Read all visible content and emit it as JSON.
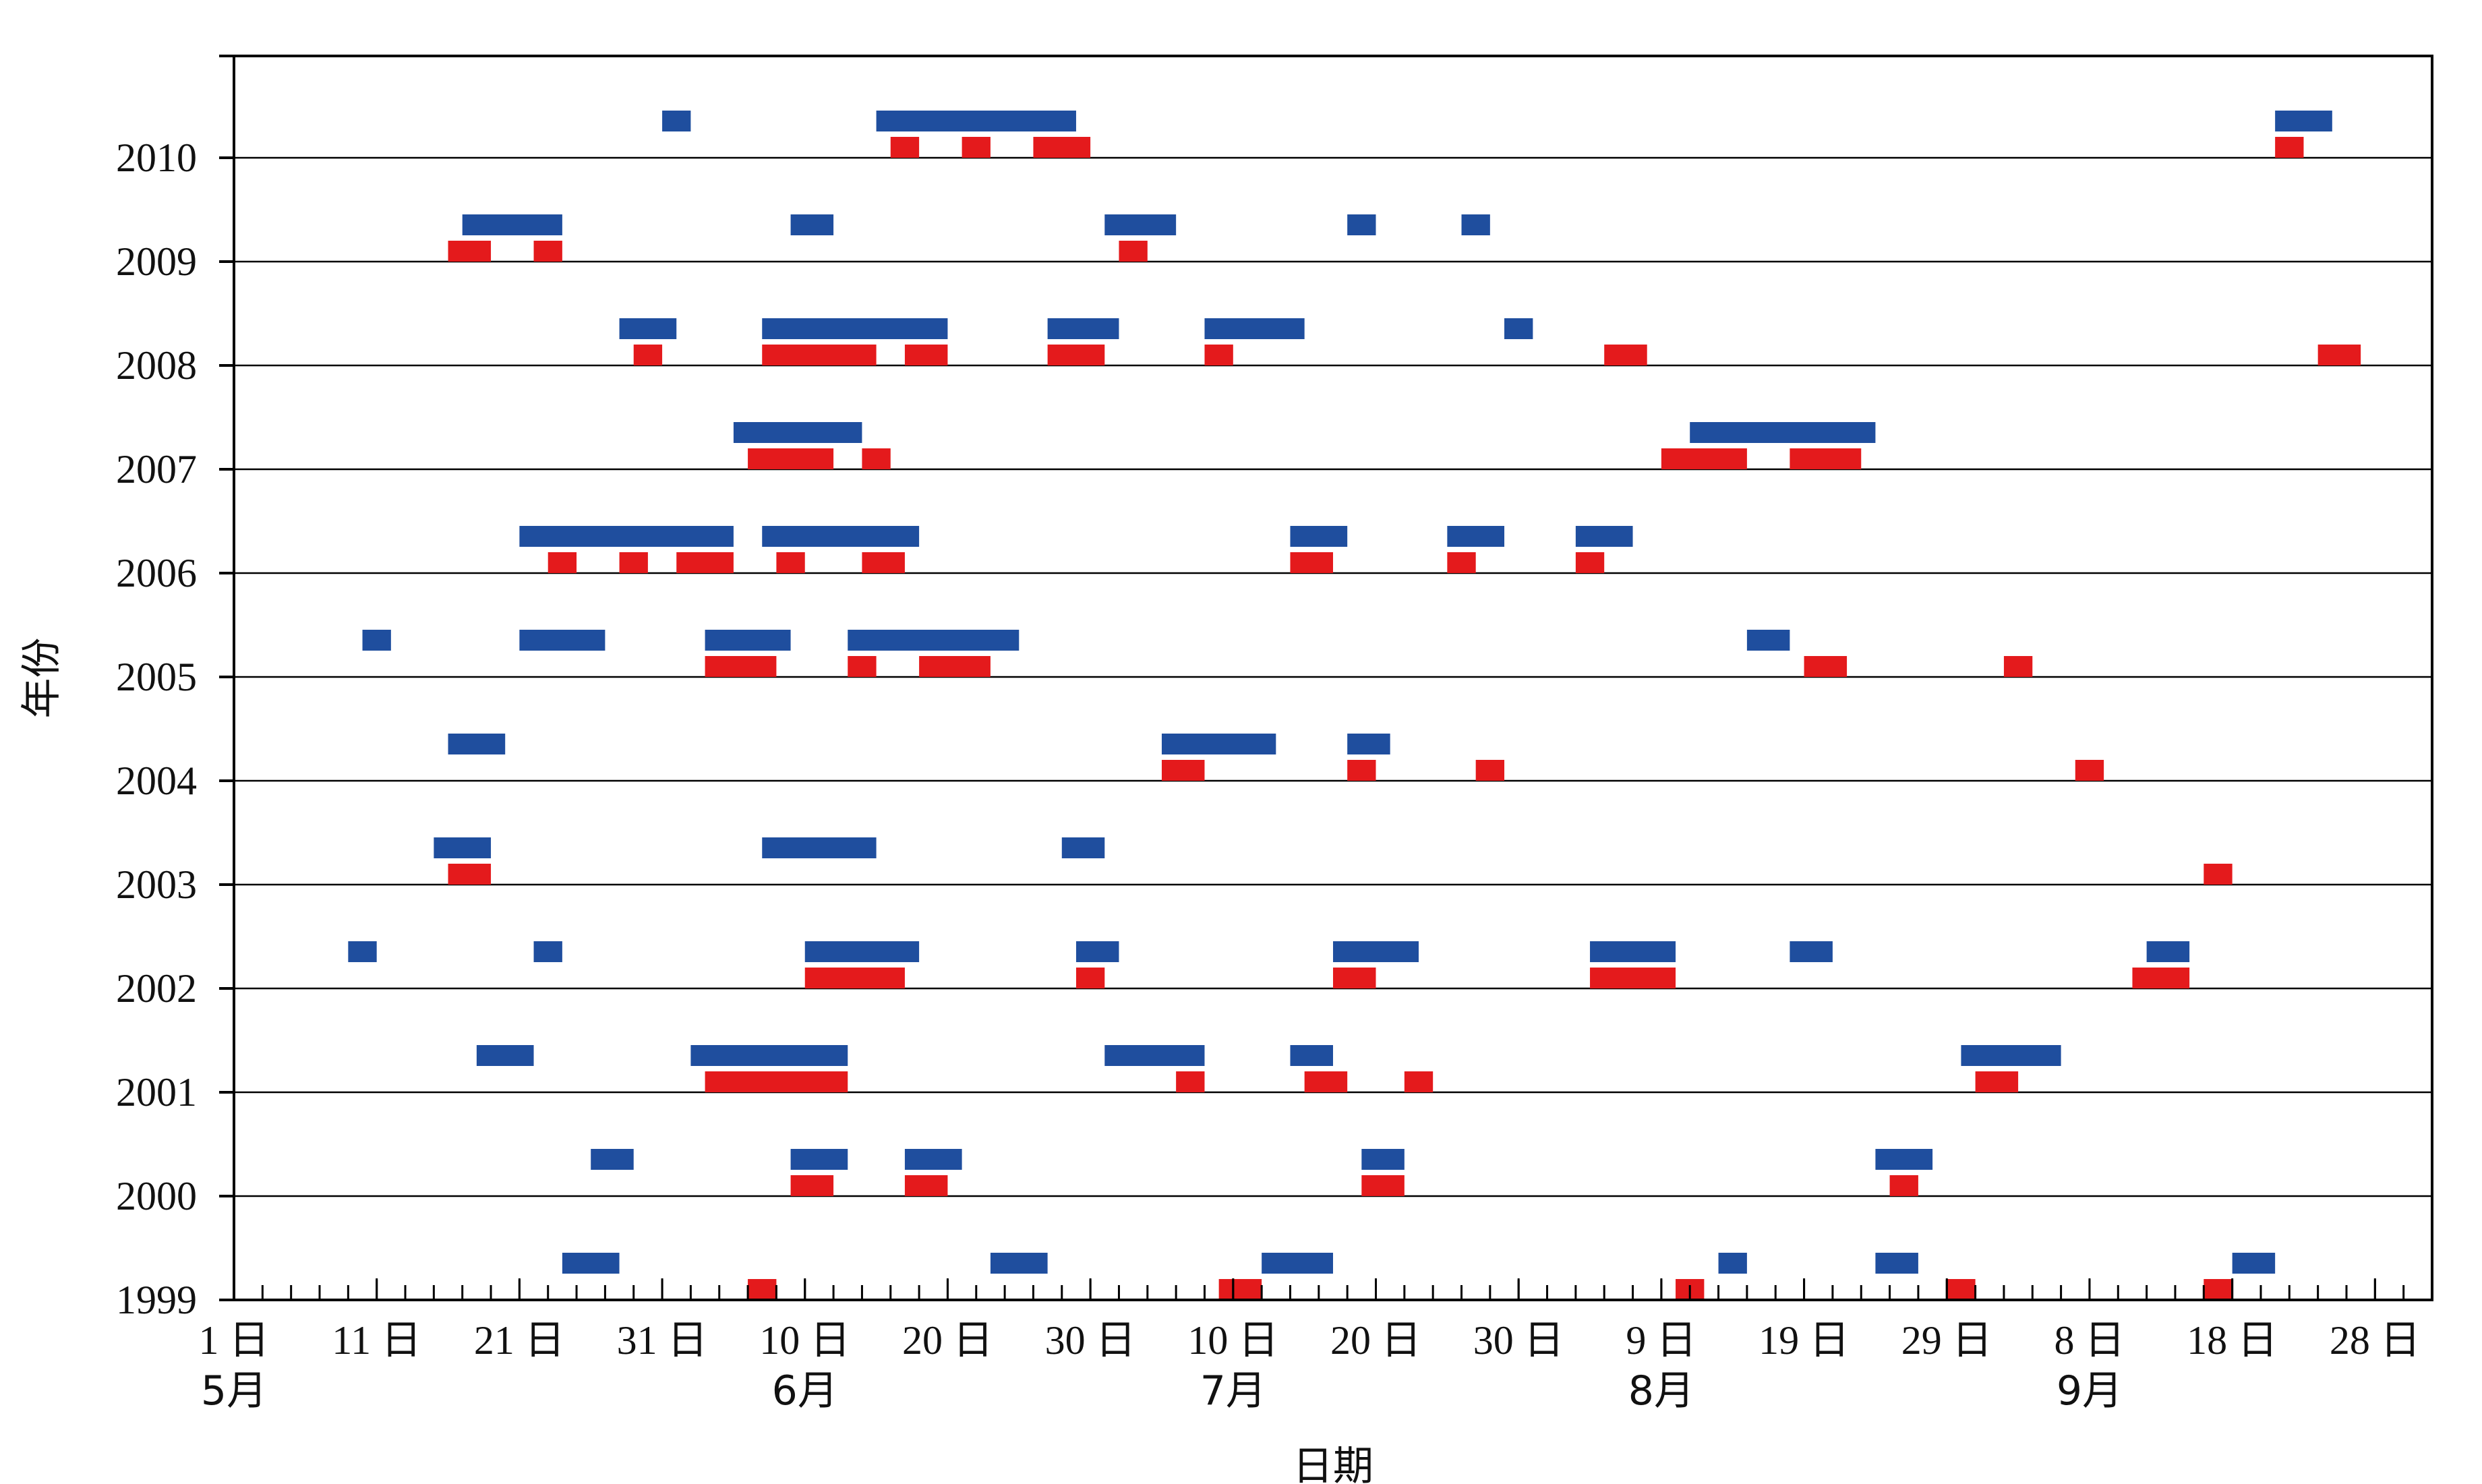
{
  "colors": {
    "blue": "#1f4e9e",
    "red": "#e41a1c",
    "axis": "#000000",
    "grid": "#000000"
  },
  "chart_data": {
    "type": "bar",
    "xlabel": "日期",
    "ylabel": "年份",
    "x_unit": "day of year (1 = May 1)",
    "xlim": [
      1,
      155
    ],
    "x_tick_labels": [
      {
        "day": 1,
        "text": "1 日"
      },
      {
        "day": 11,
        "text": "11 日"
      },
      {
        "day": 21,
        "text": "21 日"
      },
      {
        "day": 31,
        "text": "31 日"
      },
      {
        "day": 41,
        "text": "10 日"
      },
      {
        "day": 51,
        "text": "20 日"
      },
      {
        "day": 61,
        "text": "30 日"
      },
      {
        "day": 71,
        "text": "10 日"
      },
      {
        "day": 81,
        "text": "20 日"
      },
      {
        "day": 91,
        "text": "30 日"
      },
      {
        "day": 101,
        "text": "9 日"
      },
      {
        "day": 111,
        "text": "19 日"
      },
      {
        "day": 121,
        "text": "29 日"
      },
      {
        "day": 131,
        "text": "8 日"
      },
      {
        "day": 141,
        "text": "18 日"
      },
      {
        "day": 151,
        "text": "28 日"
      }
    ],
    "month_labels": [
      {
        "day": 1,
        "text": "5月"
      },
      {
        "day": 41,
        "text": "6月"
      },
      {
        "day": 71,
        "text": "7月"
      },
      {
        "day": 101,
        "text": "8月"
      },
      {
        "day": 131,
        "text": "9月"
      }
    ],
    "years": [
      1999,
      2000,
      2001,
      2002,
      2003,
      2004,
      2005,
      2006,
      2007,
      2008,
      2009,
      2010
    ],
    "series": [
      {
        "color": "blue",
        "bars": [
          {
            "year": 1999,
            "start": 24,
            "end": 28
          },
          {
            "year": 1999,
            "start": 54,
            "end": 58
          },
          {
            "year": 1999,
            "start": 73,
            "end": 78
          },
          {
            "year": 1999,
            "start": 105,
            "end": 107
          },
          {
            "year": 1999,
            "start": 116,
            "end": 119
          },
          {
            "year": 1999,
            "start": 141,
            "end": 144
          },
          {
            "year": 2000,
            "start": 26,
            "end": 29
          },
          {
            "year": 2000,
            "start": 40,
            "end": 44
          },
          {
            "year": 2000,
            "start": 48,
            "end": 52
          },
          {
            "year": 2000,
            "start": 80,
            "end": 83
          },
          {
            "year": 2000,
            "start": 116,
            "end": 120
          },
          {
            "year": 2001,
            "start": 18,
            "end": 22
          },
          {
            "year": 2001,
            "start": 33,
            "end": 44
          },
          {
            "year": 2001,
            "start": 62,
            "end": 69
          },
          {
            "year": 2001,
            "start": 75,
            "end": 78
          },
          {
            "year": 2001,
            "start": 122,
            "end": 129
          },
          {
            "year": 2002,
            "start": 9,
            "end": 11
          },
          {
            "year": 2002,
            "start": 22,
            "end": 24
          },
          {
            "year": 2002,
            "start": 41,
            "end": 49
          },
          {
            "year": 2002,
            "start": 60,
            "end": 63
          },
          {
            "year": 2002,
            "start": 78,
            "end": 84
          },
          {
            "year": 2002,
            "start": 96,
            "end": 102
          },
          {
            "year": 2002,
            "start": 110,
            "end": 113
          },
          {
            "year": 2002,
            "start": 135,
            "end": 138
          },
          {
            "year": 2003,
            "start": 15,
            "end": 19
          },
          {
            "year": 2003,
            "start": 38,
            "end": 46
          },
          {
            "year": 2003,
            "start": 59,
            "end": 62
          },
          {
            "year": 2004,
            "start": 16,
            "end": 20
          },
          {
            "year": 2004,
            "start": 66,
            "end": 74
          },
          {
            "year": 2004,
            "start": 79,
            "end": 82
          },
          {
            "year": 2005,
            "start": 10,
            "end": 12
          },
          {
            "year": 2005,
            "start": 21,
            "end": 27
          },
          {
            "year": 2005,
            "start": 34,
            "end": 40
          },
          {
            "year": 2005,
            "start": 44,
            "end": 56
          },
          {
            "year": 2005,
            "start": 107,
            "end": 110
          },
          {
            "year": 2006,
            "start": 21,
            "end": 36
          },
          {
            "year": 2006,
            "start": 38,
            "end": 49
          },
          {
            "year": 2006,
            "start": 75,
            "end": 79
          },
          {
            "year": 2006,
            "start": 86,
            "end": 90
          },
          {
            "year": 2006,
            "start": 95,
            "end": 99
          },
          {
            "year": 2007,
            "start": 36,
            "end": 45
          },
          {
            "year": 2007,
            "start": 103,
            "end": 116
          },
          {
            "year": 2008,
            "start": 28,
            "end": 32
          },
          {
            "year": 2008,
            "start": 38,
            "end": 51
          },
          {
            "year": 2008,
            "start": 58,
            "end": 63
          },
          {
            "year": 2008,
            "start": 69,
            "end": 76
          },
          {
            "year": 2008,
            "start": 90,
            "end": 92
          },
          {
            "year": 2009,
            "start": 17,
            "end": 24
          },
          {
            "year": 2009,
            "start": 40,
            "end": 43
          },
          {
            "year": 2009,
            "start": 62,
            "end": 67
          },
          {
            "year": 2009,
            "start": 79,
            "end": 81
          },
          {
            "year": 2009,
            "start": 87,
            "end": 89
          },
          {
            "year": 2010,
            "start": 31,
            "end": 33
          },
          {
            "year": 2010,
            "start": 46,
            "end": 60
          },
          {
            "year": 2010,
            "start": 144,
            "end": 148
          }
        ]
      },
      {
        "color": "red",
        "bars": [
          {
            "year": 1999,
            "start": 37,
            "end": 39
          },
          {
            "year": 1999,
            "start": 70,
            "end": 73
          },
          {
            "year": 1999,
            "start": 102,
            "end": 104
          },
          {
            "year": 1999,
            "start": 121,
            "end": 123
          },
          {
            "year": 1999,
            "start": 139,
            "end": 141
          },
          {
            "year": 2000,
            "start": 40,
            "end": 43
          },
          {
            "year": 2000,
            "start": 48,
            "end": 51
          },
          {
            "year": 2000,
            "start": 80,
            "end": 83
          },
          {
            "year": 2000,
            "start": 117,
            "end": 119
          },
          {
            "year": 2001,
            "start": 34,
            "end": 44
          },
          {
            "year": 2001,
            "start": 67,
            "end": 69
          },
          {
            "year": 2001,
            "start": 76,
            "end": 79
          },
          {
            "year": 2001,
            "start": 83,
            "end": 85
          },
          {
            "year": 2001,
            "start": 123,
            "end": 126
          },
          {
            "year": 2002,
            "start": 41,
            "end": 48
          },
          {
            "year": 2002,
            "start": 60,
            "end": 62
          },
          {
            "year": 2002,
            "start": 78,
            "end": 81
          },
          {
            "year": 2002,
            "start": 96,
            "end": 102
          },
          {
            "year": 2002,
            "start": 134,
            "end": 138
          },
          {
            "year": 2003,
            "start": 16,
            "end": 19
          },
          {
            "year": 2003,
            "start": 139,
            "end": 141
          },
          {
            "year": 2004,
            "start": 66,
            "end": 69
          },
          {
            "year": 2004,
            "start": 79,
            "end": 81
          },
          {
            "year": 2004,
            "start": 88,
            "end": 90
          },
          {
            "year": 2004,
            "start": 130,
            "end": 132
          },
          {
            "year": 2005,
            "start": 34,
            "end": 39
          },
          {
            "year": 2005,
            "start": 44,
            "end": 46
          },
          {
            "year": 2005,
            "start": 49,
            "end": 54
          },
          {
            "year": 2005,
            "start": 111,
            "end": 114
          },
          {
            "year": 2005,
            "start": 125,
            "end": 127
          },
          {
            "year": 2006,
            "start": 23,
            "end": 25
          },
          {
            "year": 2006,
            "start": 28,
            "end": 30
          },
          {
            "year": 2006,
            "start": 32,
            "end": 36
          },
          {
            "year": 2006,
            "start": 39,
            "end": 41
          },
          {
            "year": 2006,
            "start": 45,
            "end": 48
          },
          {
            "year": 2006,
            "start": 75,
            "end": 78
          },
          {
            "year": 2006,
            "start": 86,
            "end": 88
          },
          {
            "year": 2006,
            "start": 95,
            "end": 97
          },
          {
            "year": 2007,
            "start": 37,
            "end": 43
          },
          {
            "year": 2007,
            "start": 45,
            "end": 47
          },
          {
            "year": 2007,
            "start": 101,
            "end": 107
          },
          {
            "year": 2007,
            "start": 110,
            "end": 115
          },
          {
            "year": 2008,
            "start": 29,
            "end": 31
          },
          {
            "year": 2008,
            "start": 38,
            "end": 46
          },
          {
            "year": 2008,
            "start": 48,
            "end": 51
          },
          {
            "year": 2008,
            "start": 58,
            "end": 62
          },
          {
            "year": 2008,
            "start": 69,
            "end": 71
          },
          {
            "year": 2008,
            "start": 97,
            "end": 100
          },
          {
            "year": 2008,
            "start": 147,
            "end": 150
          },
          {
            "year": 2009,
            "start": 16,
            "end": 19
          },
          {
            "year": 2009,
            "start": 22,
            "end": 24
          },
          {
            "year": 2009,
            "start": 63,
            "end": 65
          },
          {
            "year": 2010,
            "start": 47,
            "end": 49
          },
          {
            "year": 2010,
            "start": 52,
            "end": 54
          },
          {
            "year": 2010,
            "start": 57,
            "end": 61
          },
          {
            "year": 2010,
            "start": 144,
            "end": 146
          }
        ]
      }
    ]
  }
}
